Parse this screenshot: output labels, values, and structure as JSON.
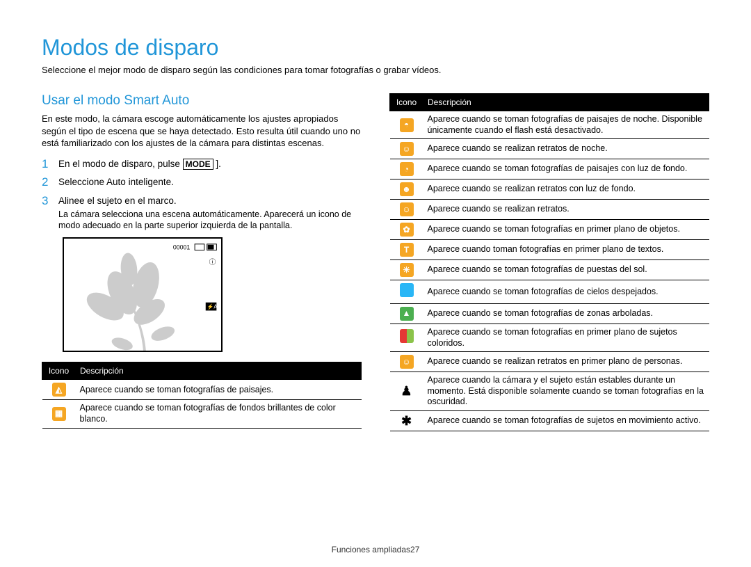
{
  "title": "Modos de disparo",
  "intro": "Seleccione el mejor modo de disparo según las condiciones para tomar fotografías o grabar vídeos.",
  "section_title": "Usar el modo Smart Auto",
  "section_para": "En este modo, la cámara escoge automáticamente los ajustes apropiados según el tipo de escena que se haya detectado. Esto resulta útil cuando uno no está familiarizado con los ajustes de la cámara para distintas escenas.",
  "steps": [
    {
      "n": "1",
      "text_pre": "En el modo de disparo, pulse ",
      "key": "MODE",
      "text_post": " ]."
    },
    {
      "n": "2",
      "text": "Seleccione Auto inteligente."
    },
    {
      "n": "3",
      "text": "Alinee el sujeto en el marco.",
      "sub": "La cámara selecciona una escena automáticamente. Aparecerá un icono de modo adecuado en la parte superior izquierda de la pantalla."
    }
  ],
  "screenshot": {
    "flower_color": "#cccccc",
    "counter": "00001",
    "indicators": [
      "ⓘ",
      "▭",
      "⚡A"
    ]
  },
  "table_headers": {
    "icon": "Icono",
    "desc": "Descripción"
  },
  "left_rows": [
    {
      "bg": "#f5a623",
      "glyph": "◭",
      "desc": "Aparece cuando se toman fotografías de paisajes."
    },
    {
      "bg": "#f5a623",
      "glyph": "▦",
      "desc": "Aparece cuando se toman fotografías de fondos brillantes de color blanco."
    }
  ],
  "right_rows": [
    {
      "bg": "#f5a623",
      "glyph": "◓",
      "desc": "Aparece cuando se toman fotografías de paisajes de noche. Disponible únicamente cuando el flash está desactivado."
    },
    {
      "bg": "#f5a623",
      "glyph": "☺",
      "desc": "Aparece cuando se realizan retratos de noche."
    },
    {
      "bg": "#f5a623",
      "glyph": "◔",
      "desc": "Aparece cuando se toman fotografías de paisajes con luz de fondo."
    },
    {
      "bg": "#f5a623",
      "glyph": "☻",
      "desc": "Aparece cuando se realizan retratos con luz de fondo."
    },
    {
      "bg": "#f5a623",
      "glyph": "☺",
      "desc": "Aparece cuando se realizan retratos."
    },
    {
      "bg": "#f5a623",
      "glyph": "✿",
      "desc": "Aparece cuando se toman fotografías en primer plano de objetos."
    },
    {
      "bg": "#f5a623",
      "glyph": "T",
      "desc": "Aparece cuando toman fotografías en primer plano de textos."
    },
    {
      "bg": "#f5a623",
      "glyph": "☀",
      "desc": "Aparece cuando se toman fotografías de puestas del sol."
    },
    {
      "bg": "#29b6f6",
      "glyph": "",
      "desc": "Aparece cuando se toman fotografías de cielos despejados."
    },
    {
      "bg": "#4caf50",
      "glyph": "▲",
      "desc": "Aparece cuando se toman fotografías de zonas arboladas."
    },
    {
      "split": true,
      "left": "#e53935",
      "right": "#8bc34a",
      "desc": "Aparece cuando se toman fotografías en primer plano de sujetos coloridos."
    },
    {
      "bg": "#f5a623",
      "glyph": "☺",
      "desc": "Aparece cuando se realizan retratos en primer plano de personas."
    },
    {
      "plain": true,
      "glyph": "♟",
      "desc": "Aparece cuando la cámara y el sujeto están estables durante un momento. Está disponible solamente cuando se toman fotografías en la oscuridad."
    },
    {
      "plain": true,
      "glyph": "✱",
      "desc": "Aparece cuando se toman fotografías de sujetos en movimiento activo."
    }
  ],
  "footer": {
    "label": "Funciones ampliadas",
    "page": "27"
  }
}
